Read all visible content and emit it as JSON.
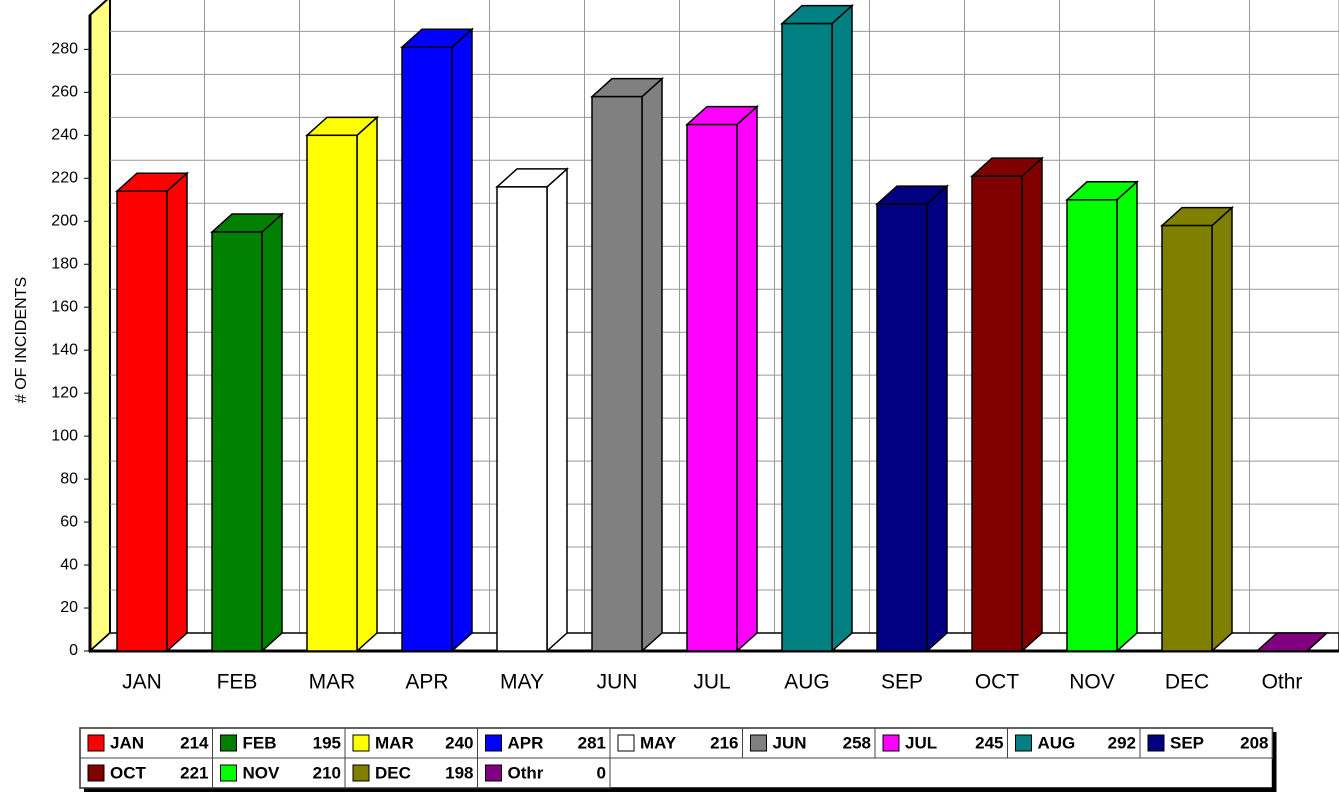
{
  "chart_data": {
    "type": "bar3d",
    "y_label": "# OF INCIDENTS",
    "categories": [
      "JAN",
      "FEB",
      "MAR",
      "APR",
      "MAY",
      "JUN",
      "JUL",
      "AUG",
      "SEP",
      "OCT",
      "NOV",
      "DEC",
      "Othr"
    ],
    "values": [
      214,
      195,
      240,
      281,
      216,
      258,
      245,
      292,
      208,
      221,
      210,
      198,
      0
    ],
    "colors": [
      "#ff0000",
      "#008000",
      "#ffff00",
      "#0000ff",
      "#ffffff",
      "#808080",
      "#ff00ff",
      "#008080",
      "#000080",
      "#800000",
      "#00ff00",
      "#808000",
      "#800080"
    ],
    "ylim": [
      0,
      296
    ],
    "yticks": [
      0,
      20,
      40,
      60,
      80,
      100,
      120,
      140,
      160,
      180,
      200,
      220,
      240,
      260,
      280
    ],
    "grid": true
  }
}
